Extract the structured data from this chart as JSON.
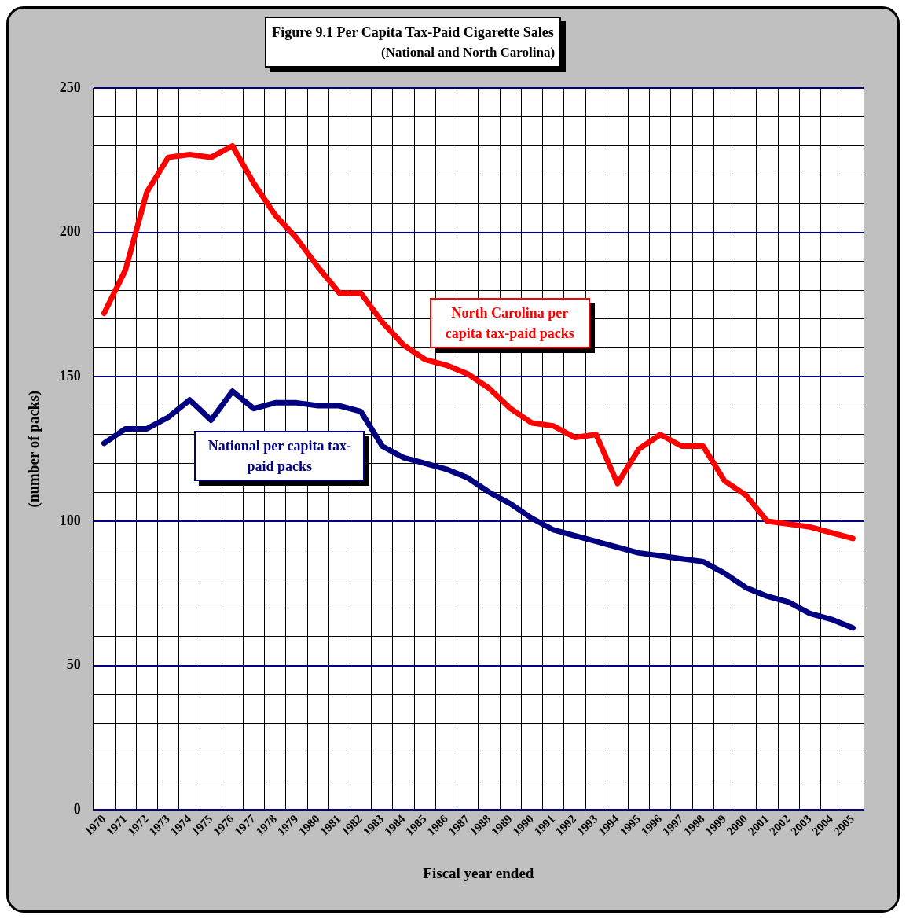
{
  "chart_data": {
    "type": "line",
    "title": "Figure 9.1  Per Capita Tax-Paid Cigarette Sales",
    "subtitle": "(National and North Carolina)",
    "xlabel": "Fiscal year ended",
    "ylabel": "(number of packs)",
    "categories": [
      "1970",
      "1971",
      "1972",
      "1973",
      "1974",
      "1975",
      "1976",
      "1977",
      "1978",
      "1979",
      "1980",
      "1981",
      "1982",
      "1983",
      "1984",
      "1985",
      "1986",
      "1987",
      "1988",
      "1989",
      "1990",
      "1991",
      "1992",
      "1993",
      "1994",
      "1995",
      "1996",
      "1997",
      "1998",
      "1999",
      "2000",
      "2001",
      "2002",
      "2003",
      "2004",
      "2005"
    ],
    "series": [
      {
        "name": "North Carolina per capita tax-paid packs",
        "color": "#ff0000",
        "values": [
          172,
          187,
          214,
          226,
          227,
          226,
          230,
          217,
          206,
          198,
          188,
          179,
          179,
          169,
          161,
          156,
          154,
          151,
          146,
          139,
          134,
          133,
          129,
          130,
          113,
          125,
          130,
          126,
          126,
          114,
          109,
          100,
          99,
          98,
          96,
          94
        ]
      },
      {
        "name": "National per capita tax-paid packs",
        "color": "#000080",
        "values": [
          127,
          132,
          132,
          136,
          142,
          135,
          145,
          139,
          141,
          141,
          140,
          140,
          138,
          126,
          122,
          120,
          118,
          115,
          110,
          106,
          101,
          97,
          95,
          93,
          91,
          89,
          88,
          87,
          86,
          82,
          77,
          74,
          72,
          68,
          66,
          63
        ]
      }
    ],
    "ylim": [
      0,
      250
    ],
    "yticks": [
      0,
      {
        "value": 10,
        "label": null
      },
      {
        "value": 20,
        "label": null
      },
      {
        "value": 30,
        "label": null
      },
      {
        "value": 40,
        "label": null
      },
      50,
      {
        "value": 60,
        "label": null
      },
      {
        "value": 70,
        "label": null
      },
      {
        "value": 80,
        "label": null
      },
      {
        "value": 90,
        "label": null
      },
      100,
      {
        "value": 110,
        "label": null
      },
      {
        "value": 120,
        "label": null
      },
      {
        "value": 130,
        "label": null
      },
      {
        "value": 140,
        "label": null
      },
      150,
      {
        "value": 160,
        "label": null
      },
      {
        "value": 170,
        "label": null
      },
      {
        "value": 180,
        "label": null
      },
      {
        "value": 190,
        "label": null
      },
      200,
      {
        "value": 210,
        "label": null
      },
      {
        "value": 220,
        "label": null
      },
      {
        "value": 230,
        "label": null
      },
      {
        "value": 240,
        "label": null
      },
      250
    ],
    "grid": true,
    "legend": false,
    "marker": "none",
    "line_style": "solid"
  }
}
